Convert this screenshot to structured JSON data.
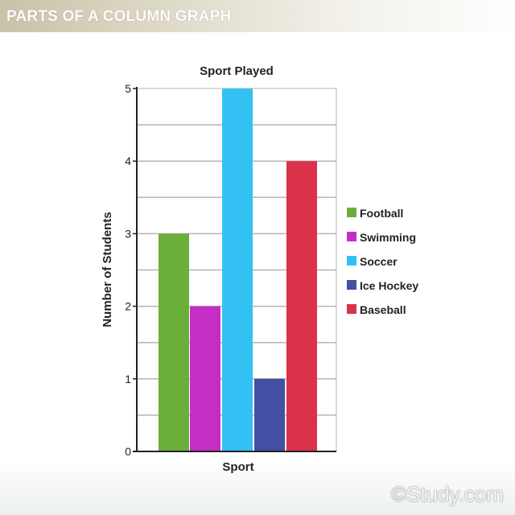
{
  "banner": {
    "title": "PARTS OF A COLUMN GRAPH"
  },
  "watermark": {
    "text": "©Study.com"
  },
  "chart_data": {
    "type": "bar",
    "title": "Sport Played",
    "xlabel": "Sport",
    "ylabel": "Number of Students",
    "ylim": [
      0,
      5
    ],
    "yticks": [
      0,
      1,
      2,
      3,
      4,
      5
    ],
    "grid": true,
    "legend_position": "right",
    "categories": [
      "Football",
      "Swimming",
      "Soccer",
      "Ice Hockey",
      "Baseball"
    ],
    "values": [
      3,
      2,
      5,
      1,
      4
    ],
    "colors": [
      "#6cae3a",
      "#c32fc4",
      "#33c1f4",
      "#4250a4",
      "#d9324a"
    ]
  }
}
